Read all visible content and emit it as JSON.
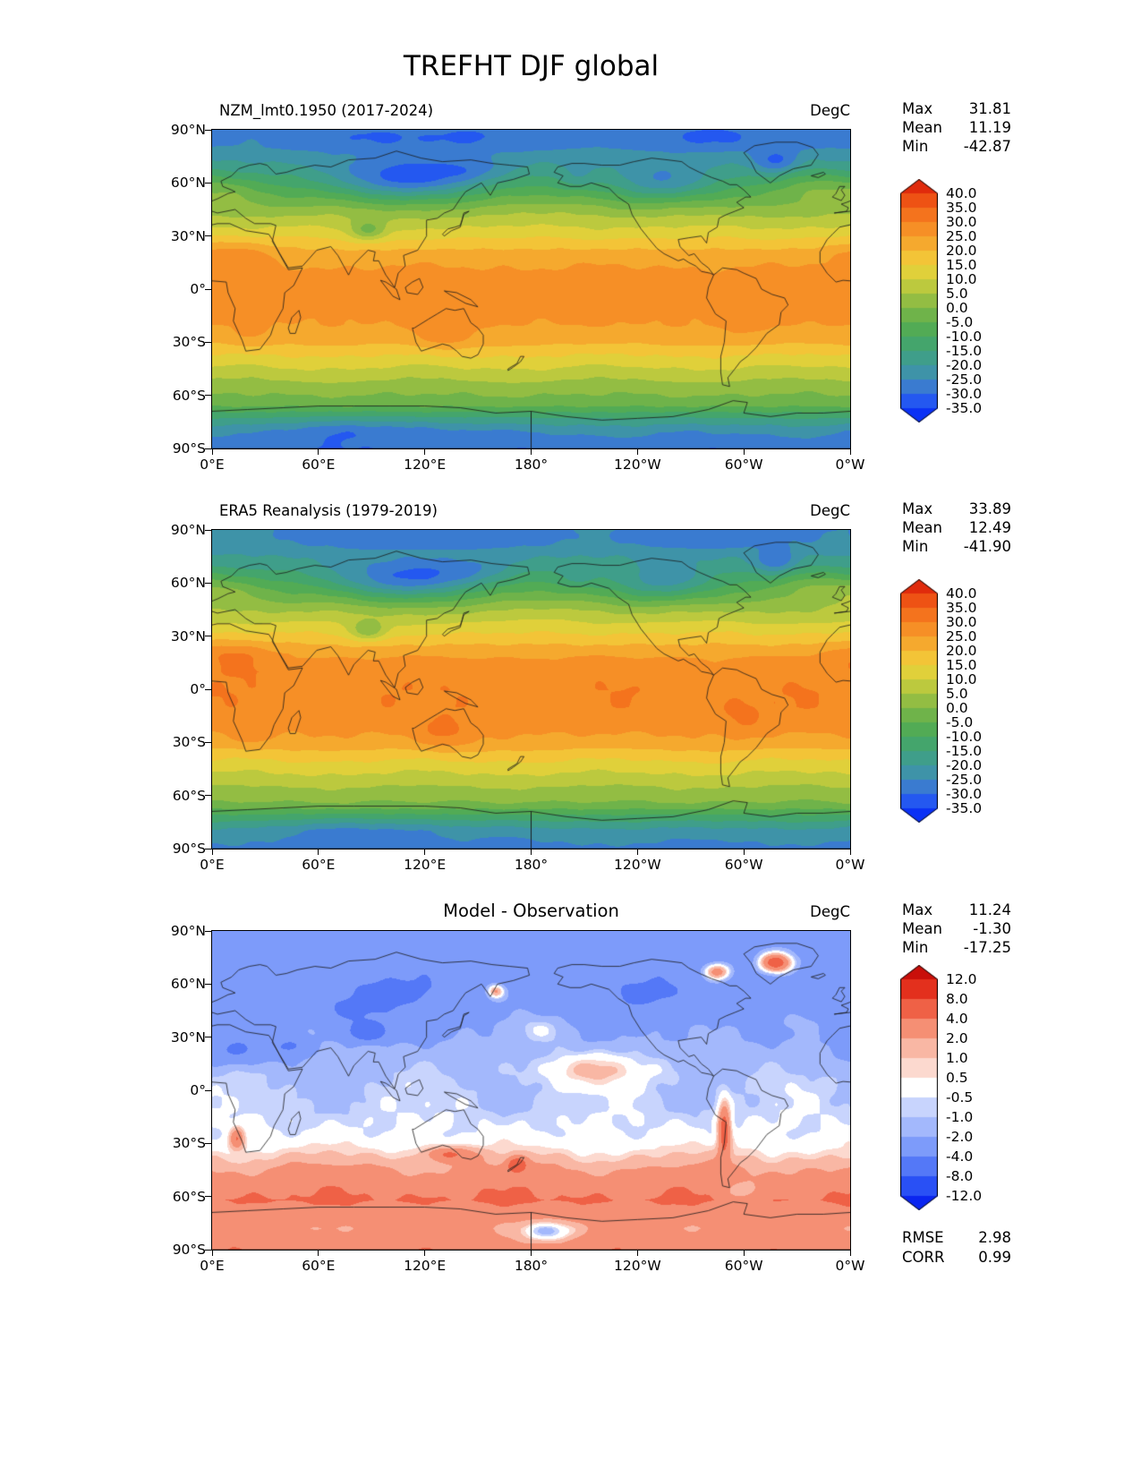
{
  "title": "TREFHT DJF global",
  "axes": {
    "y_ticks": [
      "90°N",
      "60°N",
      "30°N",
      "0°",
      "30°S",
      "60°S",
      "90°S"
    ],
    "x_ticks": [
      "0°E",
      "60°E",
      "120°E",
      "180°",
      "120°W",
      "60°W",
      "0°W"
    ]
  },
  "panels": [
    {
      "subtitle": "NZM_lmt0.1950 (2017-2024)",
      "units": "DegC",
      "stats": [
        {
          "label": "Max",
          "value": "31.81"
        },
        {
          "label": "Mean",
          "value": "11.19"
        },
        {
          "label": "Min",
          "value": "-42.87"
        }
      ],
      "colorbar_labels": [
        "40.0",
        "35.0",
        "30.0",
        "25.0",
        "20.0",
        "15.0",
        "10.0",
        "5.0",
        "0.0",
        "-5.0",
        "-10.0",
        "-15.0",
        "-20.0",
        "-25.0",
        "-30.0",
        "-35.0"
      ]
    },
    {
      "subtitle": "ERA5 Reanalysis (1979-2019)",
      "units": "DegC",
      "stats": [
        {
          "label": "Max",
          "value": "33.89"
        },
        {
          "label": "Mean",
          "value": "12.49"
        },
        {
          "label": "Min",
          "value": "-41.90"
        }
      ],
      "colorbar_labels": [
        "40.0",
        "35.0",
        "30.0",
        "25.0",
        "20.0",
        "15.0",
        "10.0",
        "5.0",
        "0.0",
        "-5.0",
        "-10.0",
        "-15.0",
        "-20.0",
        "-25.0",
        "-30.0",
        "-35.0"
      ]
    },
    {
      "subtitle": "Model - Observation",
      "units": "DegC",
      "stats": [
        {
          "label": "Max",
          "value": "11.24"
        },
        {
          "label": "Mean",
          "value": "-1.30"
        },
        {
          "label": "Min",
          "value": "-17.25"
        }
      ],
      "colorbar_labels": [
        "12.0",
        "8.0",
        "4.0",
        "2.0",
        "1.0",
        "0.5",
        "-0.5",
        "-1.0",
        "-2.0",
        "-4.0",
        "-8.0",
        "-12.0"
      ],
      "extra_stats": [
        {
          "label": "RMSE",
          "value": "2.98"
        },
        {
          "label": "CORR",
          "value": "0.99"
        }
      ]
    }
  ],
  "chart_data": [
    {
      "type": "heatmap",
      "subtype": "filled-contour-global-map",
      "title": "NZM_lmt0.1950 (2017-2024)",
      "variable": "TREFHT",
      "season": "DJF",
      "units": "DegC",
      "stats": {
        "max": 31.81,
        "mean": 11.19,
        "min": -42.87
      },
      "lon_range": [
        0,
        360
      ],
      "lat_range": [
        -90,
        90
      ],
      "contour_levels": [
        -35,
        -30,
        -25,
        -20,
        -15,
        -10,
        -5,
        0,
        5,
        10,
        15,
        20,
        25,
        30,
        35,
        40
      ],
      "colorbar_extend": "both",
      "palette": [
        "#0b31f5",
        "#2458f0",
        "#3a7bd0",
        "#3e93a8",
        "#3f9e8a",
        "#44a56c",
        "#52ab55",
        "#6fb34a",
        "#93bd43",
        "#bcc93e",
        "#e0d03a",
        "#f3c437",
        "#f5a92e",
        "#f68f26",
        "#f4731d",
        "#ee5214",
        "#e02b0c"
      ],
      "approx_zonal_mean_degC": [
        [
          90,
          -27
        ],
        [
          80,
          -25
        ],
        [
          70,
          -19
        ],
        [
          60,
          -11
        ],
        [
          50,
          -3
        ],
        [
          40,
          6
        ],
        [
          30,
          14
        ],
        [
          20,
          22
        ],
        [
          10,
          26
        ],
        [
          0,
          27
        ],
        [
          -10,
          27
        ],
        [
          -20,
          25
        ],
        [
          -30,
          21
        ],
        [
          -40,
          13
        ],
        [
          -50,
          6
        ],
        [
          -58,
          1
        ],
        [
          -65,
          -3
        ],
        [
          -72,
          -14
        ],
        [
          -80,
          -24
        ],
        [
          -90,
          -29
        ]
      ]
    },
    {
      "type": "heatmap",
      "subtype": "filled-contour-global-map",
      "title": "ERA5 Reanalysis (1979-2019)",
      "variable": "TREFHT",
      "season": "DJF",
      "units": "DegC",
      "stats": {
        "max": 33.89,
        "mean": 12.49,
        "min": -41.9
      },
      "lon_range": [
        0,
        360
      ],
      "lat_range": [
        -90,
        90
      ],
      "contour_levels": [
        -35,
        -30,
        -25,
        -20,
        -15,
        -10,
        -5,
        0,
        5,
        10,
        15,
        20,
        25,
        30,
        35,
        40
      ],
      "colorbar_extend": "both",
      "palette": [
        "#0b31f5",
        "#2458f0",
        "#3a7bd0",
        "#3e93a8",
        "#3f9e8a",
        "#44a56c",
        "#52ab55",
        "#6fb34a",
        "#93bd43",
        "#bcc93e",
        "#e0d03a",
        "#f3c437",
        "#f5a92e",
        "#f68f26",
        "#f4731d",
        "#ee5214",
        "#e02b0c"
      ],
      "approx_zonal_mean_degC": [
        [
          90,
          -26
        ],
        [
          80,
          -24
        ],
        [
          70,
          -18
        ],
        [
          60,
          -10
        ],
        [
          50,
          -2
        ],
        [
          40,
          7
        ],
        [
          30,
          15
        ],
        [
          20,
          23
        ],
        [
          10,
          27
        ],
        [
          0,
          28
        ],
        [
          -10,
          28
        ],
        [
          -20,
          26
        ],
        [
          -30,
          22
        ],
        [
          -40,
          14
        ],
        [
          -50,
          7
        ],
        [
          -58,
          2
        ],
        [
          -65,
          -2
        ],
        [
          -72,
          -13
        ],
        [
          -80,
          -23
        ],
        [
          -90,
          -28
        ]
      ]
    },
    {
      "type": "heatmap",
      "subtype": "filled-contour-global-map-difference",
      "title": "Model - Observation",
      "variable": "TREFHT bias",
      "season": "DJF",
      "units": "DegC",
      "stats": {
        "max": 11.24,
        "mean": -1.3,
        "min": -17.25
      },
      "rmse": 2.98,
      "corr": 0.99,
      "lon_range": [
        0,
        360
      ],
      "lat_range": [
        -90,
        90
      ],
      "contour_levels": [
        -12,
        -8,
        -4,
        -2,
        -1,
        -0.5,
        0.5,
        1,
        2,
        4,
        8,
        12
      ],
      "colorbar_extend": "both",
      "palette": [
        "#0a25f0",
        "#2950f5",
        "#5478f7",
        "#7d9bfa",
        "#a3b8fc",
        "#c8d4fd",
        "#ffffff",
        "#fcd9cf",
        "#f9b7a4",
        "#f58f74",
        "#ef6146",
        "#e3301d",
        "#c90f0a"
      ],
      "approx_zonal_mean_degC": [
        [
          90,
          -3.2
        ],
        [
          70,
          -3.5
        ],
        [
          55,
          -3.2
        ],
        [
          40,
          -2.6
        ],
        [
          25,
          -1.8
        ],
        [
          10,
          -1.2
        ],
        [
          0,
          -1.0
        ],
        [
          -10,
          -0.8
        ],
        [
          -25,
          -0.3
        ],
        [
          -35,
          0.7
        ],
        [
          -45,
          2.2
        ],
        [
          -55,
          3.6
        ],
        [
          -62,
          4.2
        ],
        [
          -70,
          3.0
        ],
        [
          -78,
          2.4
        ],
        [
          -90,
          3.5
        ]
      ]
    }
  ]
}
